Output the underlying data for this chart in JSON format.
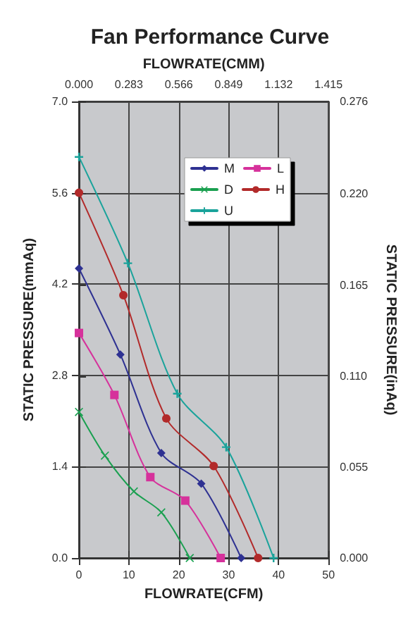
{
  "chart_data": {
    "type": "line",
    "title": "Fan Performance Curve",
    "xlabel": "FLOWRATE(CFM)",
    "x2label": "FLOWRATE(CMM)",
    "ylabel": "STATIC PRESSURE(mmAq)",
    "y2label": "STATIC PRESSURE(inAq)",
    "xlim": [
      0,
      50
    ],
    "xticks": [
      0,
      10,
      20,
      30,
      40,
      50
    ],
    "x2lim": [
      0,
      1.415
    ],
    "x2ticks": [
      {
        "value": 0,
        "label": "0.000"
      },
      {
        "value": 0.283,
        "label": "0.283"
      },
      {
        "value": 0.566,
        "label": "0.566"
      },
      {
        "value": 0.849,
        "label": "0.849"
      },
      {
        "value": 1.132,
        "label": "1.132"
      },
      {
        "value": 1.415,
        "label": "1.415"
      }
    ],
    "ylim": [
      0,
      7
    ],
    "yticks": [
      {
        "value": 0,
        "label": "0.0"
      },
      {
        "value": 1.4,
        "label": "1.4"
      },
      {
        "value": 2.8,
        "label": "2.8"
      },
      {
        "value": 4.2,
        "label": "4.2"
      },
      {
        "value": 5.6,
        "label": "5.6"
      },
      {
        "value": 7,
        "label": "7.0"
      }
    ],
    "y2lim": [
      0,
      0.276
    ],
    "y2ticks": [
      {
        "value": 0,
        "label": "0.000"
      },
      0.055,
      {
        "value": 0.11,
        "label": "0.110"
      },
      0.165,
      {
        "value": 0.22,
        "label": "0.220"
      },
      {
        "value": 0.276,
        "label": "0.276"
      }
    ],
    "grid": true,
    "legend": "top right",
    "line_style": "solid",
    "series": [
      {
        "name": "M",
        "color": "#2e3192",
        "marker": "diamond",
        "x": [
          0,
          8.3,
          16.5,
          24.5,
          32.5
        ],
        "values": [
          4.44,
          3.12,
          1.61,
          1.14,
          0
        ]
      },
      {
        "name": "L",
        "color": "#d6319b",
        "marker": "square",
        "x": [
          0,
          7.1,
          14.3,
          21.3,
          28.4
        ],
        "values": [
          3.45,
          2.5,
          1.24,
          0.88,
          0
        ]
      },
      {
        "name": "D",
        "color": "#1aa050",
        "marker": "cross",
        "x": [
          0,
          5.2,
          11,
          16.5,
          22.2
        ],
        "values": [
          2.24,
          1.57,
          1.02,
          0.7,
          0
        ]
      },
      {
        "name": "H",
        "color": "#b22a2a",
        "marker": "circle",
        "x": [
          0,
          8.9,
          17.5,
          27,
          35.9
        ],
        "values": [
          5.6,
          4.03,
          2.14,
          1.41,
          0
        ]
      },
      {
        "name": "U",
        "color": "#1aa39b",
        "marker": "plus",
        "x": [
          0,
          9.8,
          19.7,
          29.5,
          39
        ],
        "values": [
          6.15,
          4.52,
          2.52,
          1.7,
          0
        ]
      }
    ]
  }
}
